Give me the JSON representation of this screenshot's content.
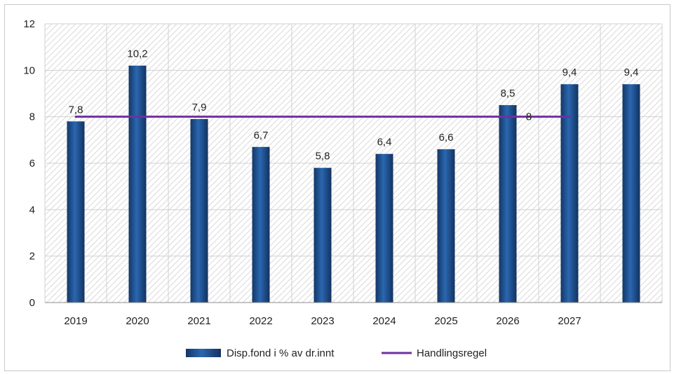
{
  "chart_data": {
    "type": "bar",
    "categories": [
      "2019",
      "2020",
      "2021",
      "2022",
      "2023",
      "2024",
      "2025",
      "2026",
      "2027",
      ""
    ],
    "series": [
      {
        "name": "Disp.fond i % av dr.innt",
        "type": "bar",
        "values": [
          7.8,
          10.2,
          7.9,
          6.7,
          5.8,
          6.4,
          6.6,
          8.5,
          9.4,
          9.4
        ],
        "labels": [
          "7,8",
          "10,2",
          "7,9",
          "6,7",
          "5,8",
          "6,4",
          "6,6",
          "8,5",
          "9,4",
          "9,4"
        ],
        "color": "#1f4e8c"
      },
      {
        "name": "Handlingsregel",
        "type": "line",
        "values": [
          8,
          8,
          8,
          8,
          8,
          8,
          8,
          8,
          8,
          null
        ],
        "end_label": "8",
        "color": "#7030a0"
      }
    ],
    "yticks": [
      "0",
      "2",
      "4",
      "6",
      "8",
      "10",
      "12"
    ],
    "ylim": [
      0,
      12
    ],
    "title": "",
    "xlabel": "",
    "ylabel": "",
    "grid": true,
    "background_pattern": "diagonal-hatch",
    "legend_position": "bottom"
  }
}
